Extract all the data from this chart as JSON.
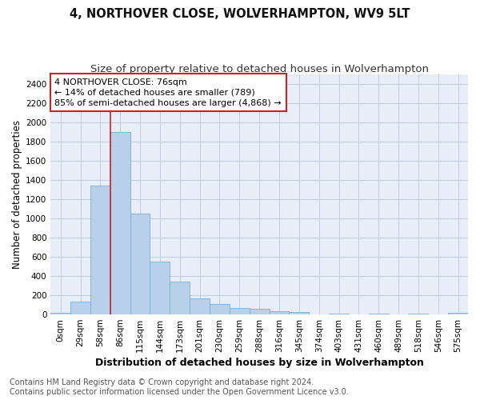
{
  "title": "4, NORTHOVER CLOSE, WOLVERHAMPTON, WV9 5LT",
  "subtitle": "Size of property relative to detached houses in Wolverhampton",
  "xlabel": "Distribution of detached houses by size in Wolverhampton",
  "ylabel": "Number of detached properties",
  "categories": [
    "0sqm",
    "29sqm",
    "58sqm",
    "86sqm",
    "115sqm",
    "144sqm",
    "173sqm",
    "201sqm",
    "230sqm",
    "259sqm",
    "288sqm",
    "316sqm",
    "345sqm",
    "374sqm",
    "403sqm",
    "431sqm",
    "460sqm",
    "489sqm",
    "518sqm",
    "546sqm",
    "575sqm"
  ],
  "values": [
    15,
    130,
    1340,
    1900,
    1050,
    550,
    340,
    165,
    110,
    65,
    60,
    35,
    25,
    0,
    5,
    0,
    5,
    0,
    5,
    0,
    20
  ],
  "bar_color": "#b8d0ea",
  "bar_edge_color": "#7aafd4",
  "vline_color": "#cc2222",
  "annotation_text": "4 NORTHOVER CLOSE: 76sqm\n← 14% of detached houses are smaller (789)\n85% of semi-detached houses are larger (4,868) →",
  "annotation_box_color": "#ffffff",
  "annotation_box_edge": "#cc2222",
  "ylim": [
    0,
    2500
  ],
  "yticks": [
    0,
    200,
    400,
    600,
    800,
    1000,
    1200,
    1400,
    1600,
    1800,
    2000,
    2200,
    2400
  ],
  "footer": "Contains HM Land Registry data © Crown copyright and database right 2024.\nContains public sector information licensed under the Open Government Licence v3.0.",
  "bg_color": "#ffffff",
  "plot_bg_color": "#e8eef8",
  "grid_color": "#c0cce0",
  "title_fontsize": 10.5,
  "subtitle_fontsize": 9.5,
  "xlabel_fontsize": 9,
  "ylabel_fontsize": 8.5,
  "tick_fontsize": 7.5,
  "footer_fontsize": 7,
  "annot_fontsize": 8
}
